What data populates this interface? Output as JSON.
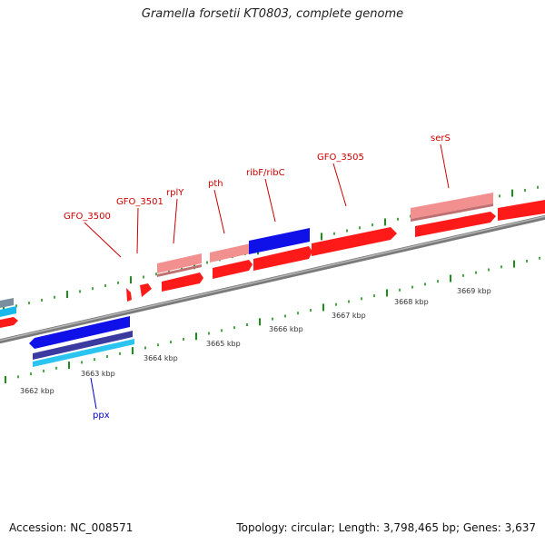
{
  "title": "Gramella forsetii KT0803, complete genome",
  "footer": {
    "accession": "Accession: NC_008571",
    "summary": "Topology: circular; Length: 3,798,465 bp; Genes: 3,637"
  },
  "colors": {
    "backbone": "#8a8a8a",
    "tick": "#1a8f1a",
    "label_red": "#cc0000",
    "label_blue": "#0000cc",
    "ruler_text": "#333333"
  },
  "ruler": {
    "unit_suffix": " kbp",
    "labels": [
      {
        "kbp": 3662,
        "text": "3662 kbp"
      },
      {
        "kbp": 3663,
        "text": "3663 kbp"
      },
      {
        "kbp": 3664,
        "text": "3664 kbp"
      },
      {
        "kbp": 3665,
        "text": "3665 kbp"
      },
      {
        "kbp": 3666,
        "text": "3666 kbp"
      },
      {
        "kbp": 3667,
        "text": "3667 kbp"
      },
      {
        "kbp": 3668,
        "text": "3668 kbp"
      },
      {
        "kbp": 3669,
        "text": "3669 kbp"
      }
    ]
  },
  "genes": [
    {
      "label": "GFO_3500",
      "color": "red",
      "strand": "forward"
    },
    {
      "label": "GFO_3501",
      "color": "red",
      "strand": "forward"
    },
    {
      "label": "rplY",
      "color": "red",
      "strand": "forward"
    },
    {
      "label": "pth",
      "color": "red",
      "strand": "forward"
    },
    {
      "label": "ribF/ribC",
      "color": "blue",
      "strand": "forward"
    },
    {
      "label": "GFO_3505",
      "color": "red",
      "strand": "forward"
    },
    {
      "label": "serS",
      "color": "red",
      "strand": "forward"
    },
    {
      "label": "ppx",
      "color": "blue",
      "strand": "reverse"
    }
  ]
}
